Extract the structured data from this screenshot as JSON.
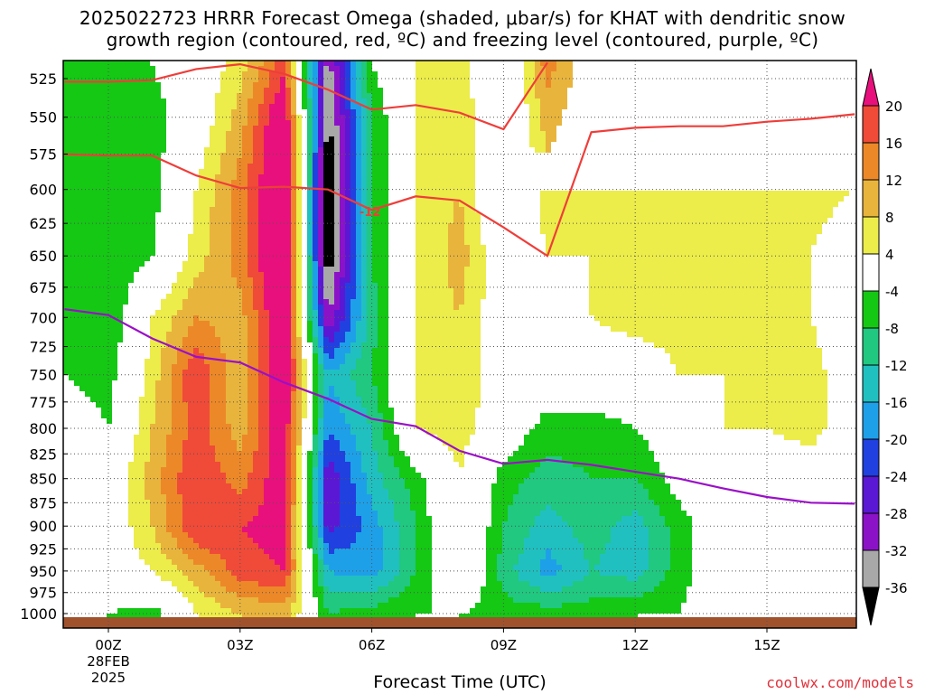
{
  "title": {
    "line1": "2025022723 HRRR Forecast Omega (shaded, μbar/s) for KHAT with dendritic snow",
    "line2": "growth region (contoured, red, ºC) and freezing level (contoured, purple, ºC)"
  },
  "x_axis_label": "Forecast Time (UTC)",
  "credit": "coolwx.com/models",
  "colors": {
    "dgz_contour": "#ee3e3a",
    "freezing_contour": "#9a10c8",
    "ground": "#a0522d"
  },
  "chart_data": {
    "type": "heatmap",
    "title": "2025022723 HRRR Forecast Omega (shaded, μbar/s) for KHAT with dendritic snow growth region (contoured, red, ºC) and freezing level (contoured, purple, ºC)",
    "xlabel": "Forecast Time (UTC)",
    "ylabel": "",
    "x_units": "forecast hour",
    "xlim": [
      -1,
      17
    ],
    "ylim": [
      1010,
      515
    ],
    "y_axis": "pressure (hPa), inverted",
    "grid": true,
    "x_ticks": [
      {
        "hour": 0,
        "labels": [
          "00Z",
          "28FEB",
          "2025"
        ]
      },
      {
        "hour": 3,
        "labels": [
          "03Z"
        ]
      },
      {
        "hour": 6,
        "labels": [
          "06Z"
        ]
      },
      {
        "hour": 9,
        "labels": [
          "09Z"
        ]
      },
      {
        "hour": 12,
        "labels": [
          "12Z"
        ]
      },
      {
        "hour": 15,
        "labels": [
          "15Z"
        ]
      }
    ],
    "y_ticks": [
      525,
      550,
      575,
      600,
      625,
      650,
      675,
      700,
      725,
      750,
      775,
      800,
      825,
      850,
      875,
      900,
      925,
      950,
      975,
      1000
    ],
    "colorbar": {
      "levels": [
        -36,
        -32,
        -28,
        -24,
        -20,
        -16,
        -12,
        -8,
        -4,
        4,
        8,
        12,
        16,
        20
      ],
      "labels": [
        "20",
        "16",
        "12",
        "8",
        "4",
        "-4",
        "-8",
        "-12",
        "-16",
        "-20",
        "-24",
        "-28",
        "-32",
        "-36"
      ],
      "colors": [
        "#000000",
        "#a8a8a8",
        "#8c12c8",
        "#5a18d4",
        "#2040e0",
        "#1ea0e8",
        "#20c0c0",
        "#20c880",
        "#14c814",
        "#ffffff",
        "#ecec4a",
        "#e8b43c",
        "#ec8828",
        "#f04a38",
        "#e8107c"
      ]
    },
    "shading_units": "μbar/s",
    "omega_field": {
      "x": [
        -1,
        0,
        1,
        2,
        3,
        4,
        5,
        6,
        7,
        8,
        9,
        10,
        11,
        12,
        13,
        14,
        15,
        16,
        17
      ],
      "y": [
        1000,
        950,
        900,
        850,
        800,
        750,
        700,
        650,
        600,
        550,
        515
      ],
      "z": [
        [
          -4,
          -4,
          -6,
          4,
          8,
          10,
          -8,
          -6,
          -4,
          -4,
          -6,
          -6,
          -6,
          -4,
          -4,
          0,
          0,
          0,
          0
        ],
        [
          0,
          0,
          4,
          10,
          18,
          20,
          -16,
          -18,
          -8,
          4,
          -10,
          -18,
          -12,
          -14,
          -6,
          0,
          0,
          0,
          0
        ],
        [
          0,
          0,
          8,
          20,
          20,
          22,
          -26,
          -18,
          -8,
          4,
          -8,
          -14,
          -10,
          -14,
          -6,
          0,
          0,
          0,
          0
        ],
        [
          0,
          0,
          10,
          20,
          14,
          24,
          -28,
          -14,
          -6,
          4,
          -6,
          -10,
          -8,
          -8,
          -2,
          0,
          0,
          0,
          0
        ],
        [
          0,
          -4,
          8,
          18,
          10,
          24,
          -20,
          -12,
          4,
          6,
          0,
          -6,
          -6,
          -4,
          0,
          4,
          4,
          6,
          0
        ],
        [
          -4,
          -6,
          6,
          20,
          8,
          26,
          -16,
          -8,
          4,
          8,
          0,
          0,
          0,
          0,
          4,
          4,
          4,
          6,
          0
        ],
        [
          -6,
          -8,
          4,
          12,
          10,
          26,
          -32,
          -10,
          4,
          8,
          0,
          0,
          4,
          6,
          6,
          6,
          6,
          4,
          0
        ],
        [
          -6,
          -8,
          -4,
          6,
          14,
          28,
          -40,
          -8,
          4,
          10,
          0,
          4,
          4,
          6,
          6,
          6,
          6,
          4,
          0
        ],
        [
          -6,
          -8,
          -6,
          4,
          14,
          28,
          -40,
          -8,
          4,
          8,
          -4,
          6,
          4,
          4,
          6,
          6,
          6,
          6,
          4
        ],
        [
          -6,
          -8,
          -6,
          0,
          10,
          26,
          -38,
          -8,
          4,
          8,
          -4,
          10,
          4,
          4,
          6,
          6,
          6,
          6,
          4
        ],
        [
          -4,
          -6,
          -4,
          0,
          6,
          18,
          -34,
          -4,
          4,
          6,
          -4,
          14,
          4,
          4,
          6,
          6,
          6,
          6,
          4
        ]
      ]
    },
    "series": [
      {
        "name": "dendritic growth region boundary (warm side)",
        "label": "-12",
        "x": [
          -1,
          0,
          1,
          2,
          3,
          4,
          5,
          6,
          7,
          8,
          9,
          10,
          11,
          12,
          13,
          14,
          15,
          16,
          17
        ],
        "y": [
          575,
          576,
          576,
          590,
          599,
          598,
          600,
          615,
          605,
          608,
          628,
          650,
          560,
          557,
          556,
          556,
          553,
          551,
          548
        ]
      },
      {
        "name": "dendritic growth region boundary (cold side)",
        "x": [
          -1,
          0,
          1,
          2,
          3,
          4,
          5,
          6,
          7,
          8,
          9,
          10
        ],
        "y": [
          527,
          527,
          526,
          519,
          516,
          522,
          532,
          545,
          542,
          547,
          558,
          515
        ]
      },
      {
        "name": "freezing level",
        "x": [
          -1,
          0,
          1,
          2,
          3,
          4,
          5,
          6,
          7,
          8,
          9,
          10,
          11,
          12,
          13,
          14,
          15,
          16,
          17
        ],
        "y": [
          693,
          698,
          718,
          734,
          739,
          757,
          772,
          791,
          798,
          822,
          835,
          831,
          836,
          843,
          850,
          860,
          869,
          875,
          876
        ]
      }
    ],
    "annotations": [
      {
        "text": "-12",
        "x": 6.0,
        "y": 616
      }
    ]
  }
}
